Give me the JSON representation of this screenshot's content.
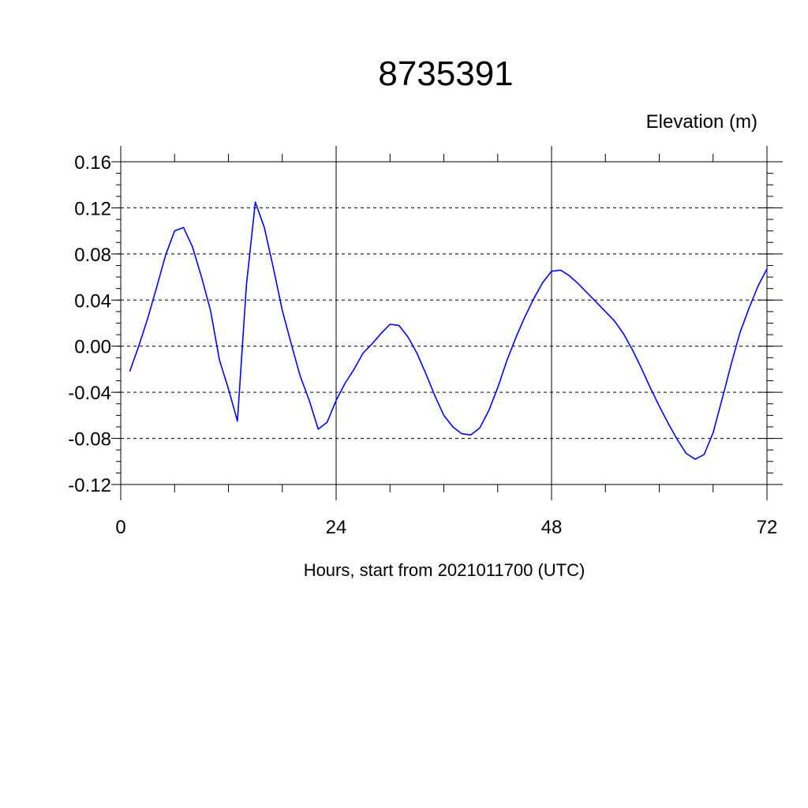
{
  "chart_data": {
    "type": "line",
    "title": "8735391",
    "ylabel": "Elevation (m)",
    "xlabel": "Hours, start from 2021011700 (UTC)",
    "xlim": [
      0,
      72
    ],
    "ylim": [
      -0.12,
      0.16
    ],
    "x_ticks": [
      0,
      24,
      48,
      72
    ],
    "x_tick_labels": [
      "0",
      "24",
      "48",
      "72"
    ],
    "y_ticks": [
      -0.12,
      -0.08,
      -0.04,
      0.0,
      0.04,
      0.08,
      0.12,
      0.16
    ],
    "y_tick_labels": [
      "-0.12",
      "-0.08",
      "-0.04",
      "0.00",
      "0.04",
      "0.08",
      "0.12",
      "0.16"
    ],
    "grid": true,
    "line_color": "#0000ff",
    "series": [
      {
        "x": [
          1,
          2,
          3,
          4,
          5,
          6,
          7,
          8,
          9,
          10,
          11,
          12,
          13,
          14,
          15,
          16,
          17,
          18,
          19,
          20,
          21,
          22,
          23,
          24,
          25,
          26,
          27,
          28,
          29,
          30,
          31,
          32,
          33,
          34,
          35,
          36,
          37,
          38,
          39,
          40,
          41,
          42,
          43,
          44,
          45,
          46,
          47,
          48,
          49,
          50,
          51,
          52,
          53,
          54,
          55,
          56,
          57,
          58,
          59,
          60,
          61,
          62,
          63,
          64,
          65,
          66,
          67,
          68,
          69,
          70,
          71,
          72
        ],
        "values": [
          -0.022,
          0.0,
          0.024,
          0.051,
          0.079,
          0.1,
          0.103,
          0.086,
          0.06,
          0.031,
          -0.012,
          -0.037,
          -0.065,
          0.053,
          0.125,
          0.103,
          0.068,
          0.031,
          0.002,
          -0.026,
          -0.047,
          -0.072,
          -0.066,
          -0.047,
          -0.032,
          -0.02,
          -0.006,
          0.002,
          0.011,
          0.019,
          0.018,
          0.008,
          -0.006,
          -0.024,
          -0.043,
          -0.06,
          -0.07,
          -0.076,
          -0.077,
          -0.071,
          -0.056,
          -0.036,
          -0.013,
          0.007,
          0.025,
          0.041,
          0.055,
          0.065,
          0.066,
          0.061,
          0.054,
          0.046,
          0.038,
          0.03,
          0.022,
          0.011,
          -0.003,
          -0.019,
          -0.036,
          -0.052,
          -0.067,
          -0.081,
          -0.093,
          -0.098,
          -0.094,
          -0.075,
          -0.046,
          -0.016,
          0.012,
          0.033,
          0.052,
          0.067
        ]
      }
    ]
  }
}
